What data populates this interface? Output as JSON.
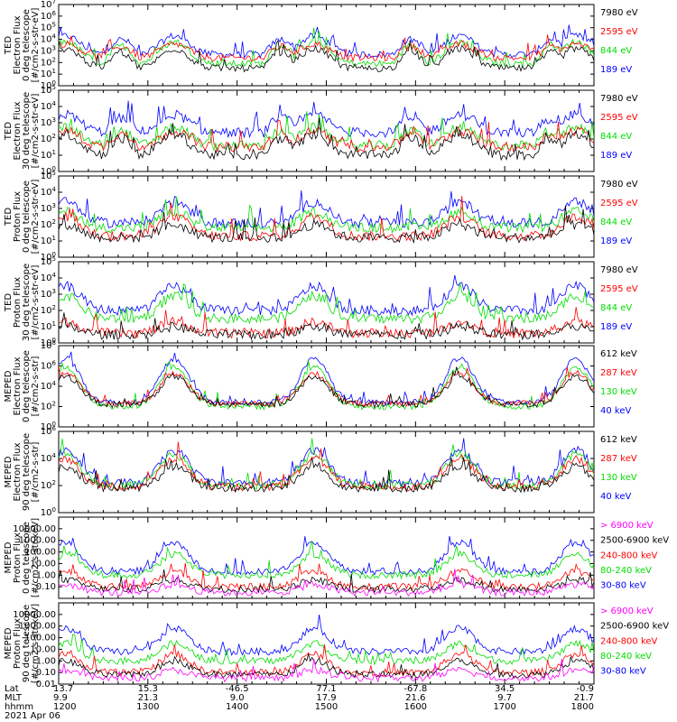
{
  "colors": {
    "black": "#000000",
    "red": "#ff0000",
    "green": "#00dd00",
    "blue": "#0000ff",
    "magenta": "#ff00ff"
  },
  "chart_data": [
    {
      "type": "line",
      "scale": "log",
      "ylabel": [
        "TED",
        "Electron Flux",
        "0 deg telescope",
        "[#/cm2-s-str-eV]"
      ],
      "ylim": [
        1,
        10000000
      ],
      "ytick_labels": [
        "10^0",
        "10^1",
        "10^2",
        "10^3",
        "10^4",
        "10^5",
        "10^6",
        "10^7"
      ],
      "legend": [
        {
          "label": "7980 eV",
          "color": "#000000"
        },
        {
          "label": "2595 eV",
          "color": "#ff0000"
        },
        {
          "label": "844 eV",
          "color": "#00dd00"
        },
        {
          "label": "189 eV",
          "color": "#0000ff"
        }
      ],
      "bg": [
        1.5,
        2.4,
        1.9,
        2.7
      ],
      "peak": [
        3.2,
        3.6,
        3.8,
        4.3
      ]
    },
    {
      "type": "line",
      "scale": "log",
      "ylabel": [
        "TED",
        "Electron Flux",
        "30 deg telescope",
        "[#/cm2-s-str-eV]"
      ],
      "ylim": [
        1,
        100000
      ],
      "ytick_labels": [
        "10^0",
        "10^1",
        "10^2",
        "10^3",
        "10^4",
        "10^5"
      ],
      "legend": [
        {
          "label": "7980 eV",
          "color": "#000000"
        },
        {
          "label": "2595 eV",
          "color": "#ff0000"
        },
        {
          "label": "844 eV",
          "color": "#00dd00"
        },
        {
          "label": "189 eV",
          "color": "#0000ff"
        }
      ],
      "bg": [
        1.0,
        1.5,
        1.6,
        2.4
      ],
      "peak": [
        2.3,
        2.5,
        2.7,
        3.5
      ]
    },
    {
      "type": "line",
      "scale": "log",
      "ylabel": [
        "TED",
        "Proton Flux",
        "0 deg telescope",
        "[#/cm2-s-str-eV]"
      ],
      "ylim": [
        1,
        100000
      ],
      "ytick_labels": [
        "10^0",
        "10^1",
        "10^2",
        "10^3",
        "10^4",
        "10^5"
      ],
      "legend": [
        {
          "label": "7980 eV",
          "color": "#000000"
        },
        {
          "label": "2595 eV",
          "color": "#ff0000"
        },
        {
          "label": "844 eV",
          "color": "#00dd00"
        },
        {
          "label": "189 eV",
          "color": "#0000ff"
        }
      ],
      "bg": [
        1.2,
        1.3,
        1.8,
        2.1
      ],
      "peak": [
        2.0,
        2.5,
        2.8,
        3.4
      ]
    },
    {
      "type": "line",
      "scale": "log",
      "ylabel": [
        "TED",
        "Proton Flux",
        "30 deg telescope",
        "[#/cm2-s-str-eV]"
      ],
      "ylim": [
        1,
        100000
      ],
      "ytick_labels": [
        "10^0",
        "10^1",
        "10^2",
        "10^3",
        "10^4",
        "10^5"
      ],
      "legend": [
        {
          "label": "7980 eV",
          "color": "#000000"
        },
        {
          "label": "2595 eV",
          "color": "#ff0000"
        },
        {
          "label": "844 eV",
          "color": "#00dd00"
        },
        {
          "label": "189 eV",
          "color": "#0000ff"
        }
      ],
      "bg": [
        0.5,
        0.6,
        1.5,
        2.0
      ],
      "peak": [
        1.0,
        1.3,
        2.9,
        3.5
      ]
    },
    {
      "type": "line",
      "scale": "log",
      "ylabel": [
        "MEPED",
        "Electron Flux",
        "0 deg telescope",
        "[#/cm2-s-str]"
      ],
      "ylim": [
        1,
        100000000
      ],
      "ytick_labels": [
        "10^0",
        "10^2",
        "10^4",
        "10^6",
        "10^8"
      ],
      "legend": [
        {
          "label": "612 keV",
          "color": "#000000"
        },
        {
          "label": "287 keV",
          "color": "#ff0000"
        },
        {
          "label": "130 keV",
          "color": "#00dd00"
        },
        {
          "label": "40 keV",
          "color": "#0000ff"
        }
      ],
      "bg": [
        2.2,
        2.3,
        2.0,
        2.4
      ],
      "peak": [
        5.0,
        5.3,
        5.9,
        6.7
      ]
    },
    {
      "type": "line",
      "scale": "log",
      "ylabel": [
        "MEPED",
        "Electron Flux",
        "90 deg telescope",
        "[#/cm2-s-str]"
      ],
      "ylim": [
        1,
        1000000
      ],
      "ytick_labels": [
        "10^0",
        "10^2",
        "10^4",
        "10^6"
      ],
      "legend": [
        {
          "label": "612 keV",
          "color": "#000000"
        },
        {
          "label": "287 keV",
          "color": "#ff0000"
        },
        {
          "label": "130 keV",
          "color": "#00dd00"
        },
        {
          "label": "40 keV",
          "color": "#0000ff"
        }
      ],
      "bg": [
        1.8,
        1.9,
        2.0,
        2.2
      ],
      "peak": [
        3.4,
        4.0,
        4.3,
        4.6
      ]
    },
    {
      "type": "line",
      "scale": "log",
      "ylabel": [
        "MEPED",
        "Proton Flux",
        "0 deg telescope",
        "[#/cm2-s-str-keV]"
      ],
      "ylim": [
        0.01,
        100000
      ],
      "ytick_labels": [
        "0.10",
        "1.00",
        "10.00",
        "100.00",
        "1000.00",
        "10000.00"
      ],
      "legend": [
        {
          "label": "> 6900 keV",
          "color": "#ff00ff"
        },
        {
          "label": "2500-6900 keV",
          "color": "#000000"
        },
        {
          "label": "240-800 keV",
          "color": "#ff0000"
        },
        {
          "label": "80-240 keV",
          "color": "#00dd00"
        },
        {
          "label": "30-80 keV",
          "color": "#0000ff"
        }
      ],
      "bg": [
        -1.5,
        -1.2,
        -1.0,
        0.0,
        0.3
      ],
      "peak": [
        -0.8,
        -0.4,
        0.3,
        1.8,
        2.8
      ]
    },
    {
      "type": "line",
      "scale": "log",
      "ylabel": [
        "MEPED",
        "Proton Flux",
        "90 deg telescope",
        "[#/cm2-s-str-keV]"
      ],
      "ylim": [
        0.01,
        100000
      ],
      "ytick_labels": [
        "0.01",
        "0.10",
        "1.00",
        "10.00",
        "100.00",
        "1000.00",
        "10000.00"
      ],
      "legend": [
        {
          "label": "> 6900 keV",
          "color": "#ff00ff"
        },
        {
          "label": "2500-6900 keV",
          "color": "#000000"
        },
        {
          "label": "240-800 keV",
          "color": "#ff0000"
        },
        {
          "label": "80-240 keV",
          "color": "#00dd00"
        },
        {
          "label": "30-80 keV",
          "color": "#0000ff"
        }
      ],
      "bg": [
        -1.5,
        -1.2,
        -1.0,
        0.0,
        0.8
      ],
      "peak": [
        -0.8,
        0.0,
        0.6,
        1.5,
        2.8
      ]
    }
  ],
  "footer": {
    "row_labels": [
      "Lat",
      "MLT",
      "hhmm"
    ],
    "columns": [
      {
        "lat": "13.7",
        "mlt": "9.9",
        "hhmm": "1200"
      },
      {
        "lat": "15.3",
        "mlt": "21.3",
        "hhmm": "1300"
      },
      {
        "lat": "-46.5",
        "mlt": "9.0",
        "hhmm": "1400"
      },
      {
        "lat": "77.1",
        "mlt": "17.9",
        "hhmm": "1500"
      },
      {
        "lat": "-67.8",
        "mlt": "21.6",
        "hhmm": "1600"
      },
      {
        "lat": "34.5",
        "mlt": "9.7",
        "hhmm": "1700"
      },
      {
        "lat": "-0.9",
        "mlt": "21.7",
        "hhmm": "1800"
      }
    ],
    "date": "2021 Apr 06"
  }
}
